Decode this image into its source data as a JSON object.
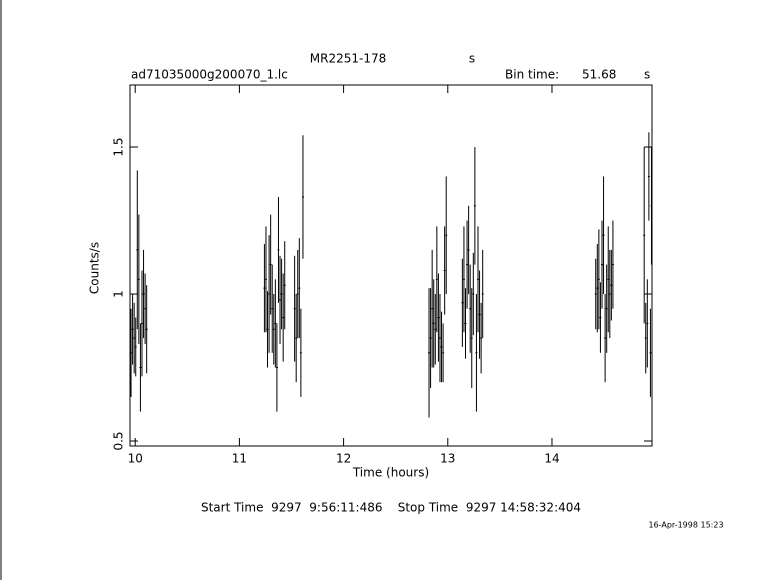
{
  "chart_data": {
    "type": "errorbar",
    "title": "MR2251-178",
    "title_units": "s",
    "filename": "ad71035000g200070_1.lc",
    "bin_time_label": "Bin time:",
    "bin_time": 51.68,
    "bin_time_units": "s",
    "xlabel": "Time (hours)",
    "ylabel": "Counts/s",
    "footer": "Start Time  9297  9:56:11:486    Stop Time  9297 14:58:32:404",
    "date": "16-Apr-1998 15:23",
    "color": "#000000",
    "xlim": [
      9.95,
      14.96
    ],
    "xticks": [
      10,
      11,
      12,
      13,
      14
    ],
    "ylim": [
      0.483,
      1.711
    ],
    "yticks": [
      0.5,
      1,
      1.5
    ],
    "x": [
      9.96,
      9.975,
      9.99,
      10.005,
      10.02,
      10.035,
      10.05,
      10.065,
      10.08,
      10.095,
      10.11,
      11.24,
      11.255,
      11.27,
      11.285,
      11.3,
      11.315,
      11.33,
      11.345,
      11.36,
      11.375,
      11.39,
      11.405,
      11.42,
      11.435,
      11.53,
      11.545,
      11.56,
      11.575,
      11.59,
      11.61,
      12.82,
      12.835,
      12.85,
      12.865,
      12.88,
      12.895,
      12.91,
      12.925,
      12.94,
      12.955,
      12.97,
      12.985,
      13.14,
      13.155,
      13.17,
      13.185,
      13.2,
      13.215,
      13.23,
      13.245,
      13.26,
      13.275,
      13.29,
      13.305,
      13.32,
      13.335,
      14.42,
      14.435,
      14.45,
      14.465,
      14.48,
      14.495,
      14.51,
      14.525,
      14.54,
      14.555,
      14.57,
      14.585,
      14.885,
      14.9,
      14.915,
      14.93,
      14.945,
      14.955
    ],
    "values": [
      0.8,
      0.88,
      0.85,
      0.82,
      1.15,
      1.05,
      0.75,
      0.9,
      1.0,
      0.95,
      0.88,
      1.02,
      1.05,
      0.88,
      1.0,
      1.1,
      0.95,
      0.88,
      0.9,
      0.75,
      1.15,
      0.98,
      1.0,
      0.92,
      1.03,
      0.95,
      0.85,
      1.0,
      1.02,
      0.8,
      1.33,
      0.8,
      0.85,
      0.95,
      0.9,
      0.88,
      1.05,
      0.92,
      0.85,
      0.82,
      0.8,
      1.08,
      1.2,
      0.97,
      1.05,
      0.9,
      1.1,
      1.15,
      0.95,
      0.85,
      1.0,
      1.3,
      0.8,
      1.05,
      0.93,
      0.85,
      1.0,
      1.0,
      1.02,
      1.05,
      0.92,
      1.1,
      1.2,
      0.85,
      0.95,
      1.05,
      1.0,
      1.03,
      1.1,
      1.2,
      0.85,
      0.9,
      1.4,
      0.8,
      1.3
    ],
    "errors": [
      0.15,
      0.12,
      0.12,
      0.1,
      0.27,
      0.22,
      0.15,
      0.18,
      0.15,
      0.12,
      0.15,
      0.15,
      0.18,
      0.13,
      0.2,
      0.17,
      0.15,
      0.12,
      0.15,
      0.15,
      0.18,
      0.15,
      0.12,
      0.15,
      0.15,
      0.18,
      0.15,
      0.15,
      0.17,
      0.15,
      0.21,
      0.22,
      0.17,
      0.2,
      0.15,
      0.12,
      0.18,
      0.15,
      0.15,
      0.12,
      0.1,
      0.15,
      0.2,
      0.15,
      0.18,
      0.12,
      0.15,
      0.15,
      0.15,
      0.17,
      0.14,
      0.2,
      0.2,
      0.18,
      0.15,
      0.12,
      0.15,
      0.12,
      0.15,
      0.17,
      0.12,
      0.15,
      0.2,
      0.15,
      0.15,
      0.18,
      0.15,
      0.12,
      0.15,
      0.3,
      0.12,
      0.15,
      0.15,
      0.15,
      0.2
    ]
  }
}
